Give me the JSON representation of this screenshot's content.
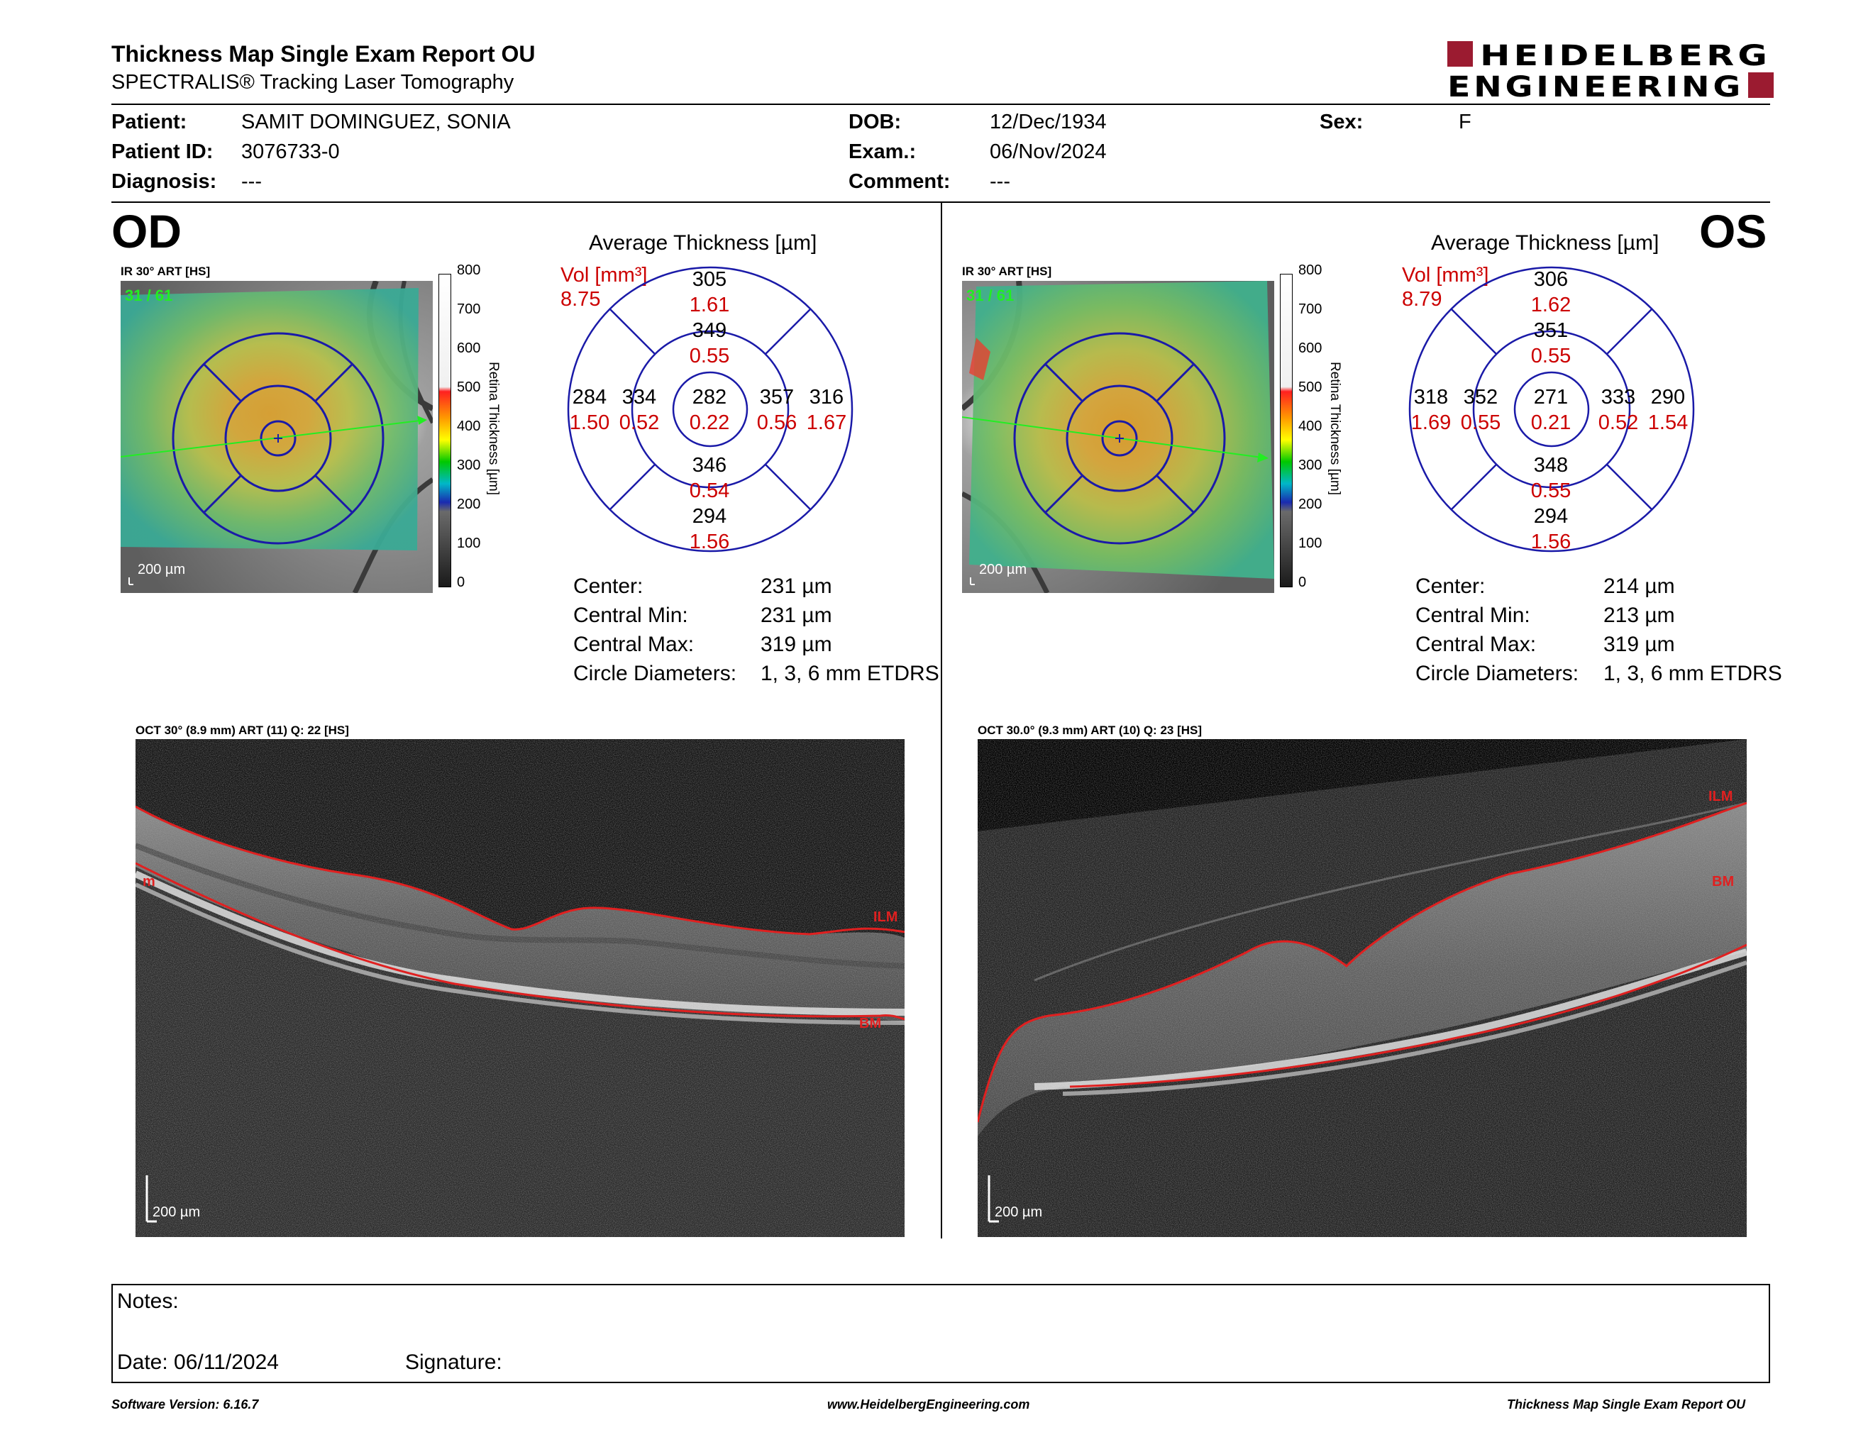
{
  "header": {
    "title": "Thickness Map Single Exam Report OU",
    "subtitle": "SPECTRALIS® Tracking Laser Tomography",
    "brand_line1": "HEIDELBERG",
    "brand_line2": "ENGINEERING"
  },
  "patient": {
    "patient_label": "Patient:",
    "patient_value": "SAMIT DOMINGUEZ, SONIA",
    "id_label": "Patient ID:",
    "id_value": "3076733-0",
    "diagnosis_label": "Diagnosis:",
    "diagnosis_value": "---",
    "dob_label": "DOB:",
    "dob_value": "12/Dec/1934",
    "exam_label": "Exam.:",
    "exam_value": "06/Nov/2024",
    "comment_label": "Comment:",
    "comment_value": "---",
    "sex_label": "Sex:",
    "sex_value": "F"
  },
  "od": {
    "eye": "OD",
    "ir_caption": "IR 30° ART [HS]",
    "frame_counter": "31 / 61",
    "scale": "200 µm",
    "avg_title": "Average Thickness [µm]",
    "vol_label": "Vol [mm³]",
    "vol_value": "8.75",
    "grid": {
      "superior_outer": [
        "305",
        "1.61"
      ],
      "superior_inner": [
        "349",
        "0.55"
      ],
      "center": [
        "282",
        "0.22"
      ],
      "temporal_outer": [
        "284",
        "1.50"
      ],
      "temporal_inner": [
        "334",
        "0.52"
      ],
      "nasal_inner": [
        "357",
        "0.56"
      ],
      "nasal_outer": [
        "316",
        "1.67"
      ],
      "inferior_inner": [
        "346",
        "0.54"
      ],
      "inferior_outer": [
        "294",
        "1.56"
      ]
    },
    "stats": {
      "center_label": "Center:",
      "center_value": "231 µm",
      "min_label": "Central Min:",
      "min_value": "231 µm",
      "max_label": "Central Max:",
      "max_value": "319 µm",
      "diam_label": "Circle Diameters:",
      "diam_value": "1, 3, 6 mm ETDRS"
    },
    "oct_caption": "OCT 30° (8.9 mm) ART (11) Q: 22 [HS]",
    "oct_scale": "200 µm",
    "ilm_label": "ILM",
    "bm_label": "BM",
    "m_label": "m"
  },
  "os": {
    "eye": "OS",
    "ir_caption": "IR 30° ART [HS]",
    "frame_counter": "31 / 61",
    "scale": "200 µm",
    "avg_title": "Average Thickness [µm]",
    "vol_label": "Vol [mm³]",
    "vol_value": "8.79",
    "grid": {
      "superior_outer": [
        "306",
        "1.62"
      ],
      "superior_inner": [
        "351",
        "0.55"
      ],
      "center": [
        "271",
        "0.21"
      ],
      "temporal_outer": [
        "318",
        "1.69"
      ],
      "temporal_inner": [
        "352",
        "0.55"
      ],
      "nasal_inner": [
        "333",
        "0.52"
      ],
      "nasal_outer": [
        "290",
        "1.54"
      ],
      "inferior_inner": [
        "348",
        "0.55"
      ],
      "inferior_outer": [
        "294",
        "1.56"
      ]
    },
    "stats": {
      "center_label": "Center:",
      "center_value": "214 µm",
      "min_label": "Central Min:",
      "min_value": "213 µm",
      "max_label": "Central Max:",
      "max_value": "319 µm",
      "diam_label": "Circle Diameters:",
      "diam_value": "1, 3, 6 mm ETDRS"
    },
    "oct_caption": "OCT 30.0° (9.3 mm) ART (10) Q: 23 [HS]",
    "oct_scale": "200 µm",
    "ilm_label": "ILM",
    "bm_label": "BM"
  },
  "colorbar": {
    "title": "Retina Thickness [µm]",
    "ticks": [
      "800",
      "700",
      "600",
      "500",
      "400",
      "300",
      "200",
      "100",
      "0"
    ]
  },
  "notes": {
    "notes_label": "Notes:",
    "date_label": "Date: 06/11/2024",
    "signature_label": "Signature:"
  },
  "footer": {
    "software": "Software Version: 6.16.7",
    "website": "www.HeidelbergEngineering.com",
    "report": "Thickness Map Single Exam Report OU"
  },
  "colors": {
    "brand": "#9b1b30",
    "value_red": "#cc0000",
    "grid_blue": "#1a1aa8",
    "scan_green": "#22cc22"
  }
}
